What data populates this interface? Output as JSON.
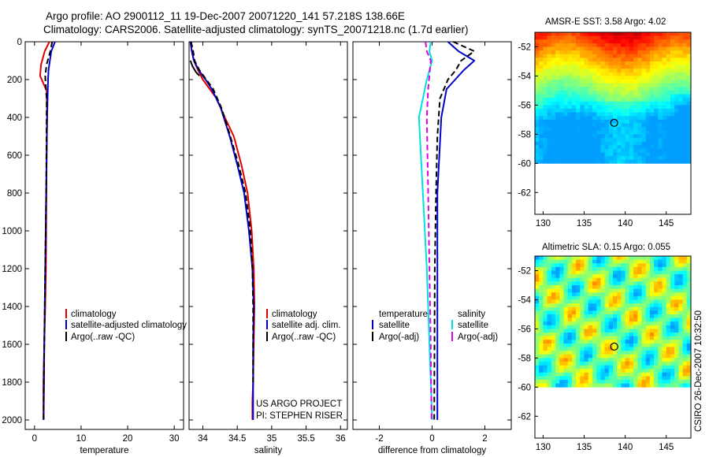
{
  "header": {
    "line1": "Argo profile: AO 2900112_11 19-Dec-2007 20071220_141 57.218S 138.66E",
    "line2": "Climatology: CARS2006. Satellite-adjusted climatology: synTS_20071218.nc (1.7d earlier)"
  },
  "credit": {
    "line1": "US ARGO PROJECT",
    "line2": "PI: STEPHEN RISER",
    "stamp": "CSIRO 26-Dec-2007 10:32:50"
  },
  "colors": {
    "climatology": "#e00000",
    "satellite": "#0000cc",
    "argo": "#000000",
    "sat_cyan": "#00e0e0",
    "argo_magenta": "#e000e0"
  },
  "chart_data": [
    {
      "type": "line",
      "title": "",
      "xlabel": "temperature",
      "ylabel": "",
      "xlim": [
        -2,
        32
      ],
      "ylim": [
        2050,
        0
      ],
      "xticks": [
        0,
        10,
        20,
        30
      ],
      "yticks": [
        0,
        200,
        400,
        600,
        800,
        1000,
        1200,
        1400,
        1600,
        1800,
        2000
      ],
      "legend": [
        "climatology",
        "satellite-adjusted climatology",
        "Argo(..raw -QC)"
      ],
      "series": [
        {
          "name": "climatology",
          "style": "solid",
          "color": "#e00000",
          "x": [
            3.2,
            2.2,
            1.4,
            1.2,
            2.6,
            2.7,
            2.6,
            2.55,
            2.5,
            2.45,
            2.3,
            2.2,
            2.1,
            2.0,
            1.9,
            1.9,
            1.9
          ],
          "y": [
            0,
            50,
            120,
            180,
            260,
            400,
            600,
            800,
            1000,
            1200,
            1400,
            1500,
            1600,
            1700,
            1800,
            1900,
            2000
          ]
        },
        {
          "name": "satellite-adjusted climatology",
          "style": "solid",
          "color": "#0000cc",
          "x": [
            4.4,
            3.6,
            3.3,
            3.0,
            2.9,
            2.85,
            2.7,
            2.6,
            2.5,
            2.4,
            2.3,
            2.2,
            2.1,
            2.05,
            2.0,
            1.95
          ],
          "y": [
            0,
            50,
            100,
            150,
            200,
            250,
            400,
            600,
            800,
            1000,
            1200,
            1400,
            1600,
            1800,
            1900,
            2000
          ]
        },
        {
          "name": "Argo(..raw -QC)",
          "style": "dash",
          "color": "#000000",
          "x": [
            3.8,
            3.4,
            2.6,
            2.3,
            2.4,
            2.6,
            2.6,
            2.55,
            2.5,
            2.4,
            2.3,
            2.2,
            2.1,
            2.0,
            1.95
          ],
          "y": [
            0,
            50,
            120,
            180,
            230,
            300,
            400,
            600,
            800,
            1000,
            1200,
            1400,
            1600,
            1800,
            2000
          ]
        }
      ]
    },
    {
      "type": "line",
      "title": "",
      "xlabel": "salinity",
      "ylabel": "",
      "xlim": [
        33.8,
        36.1
      ],
      "ylim": [
        2050,
        0
      ],
      "xticks": [
        34,
        34.5,
        35,
        35.5,
        36
      ],
      "xticklabels": [
        "34",
        "34.5",
        "35",
        "35.5",
        "36"
      ],
      "legend": [
        "climatology",
        "satellite adj. clim.",
        "Argo(..raw -QC)"
      ],
      "series": [
        {
          "name": "climatology",
          "style": "solid",
          "color": "#e00000",
          "x": [
            33.82,
            33.84,
            33.87,
            33.93,
            34.0,
            34.1,
            34.2,
            34.32,
            34.45,
            34.56,
            34.65,
            34.71,
            34.74,
            34.75,
            34.74,
            34.73,
            34.72,
            34.72
          ],
          "y": [
            0,
            50,
            100,
            150,
            200,
            250,
            300,
            400,
            500,
            650,
            800,
            1000,
            1200,
            1400,
            1600,
            1800,
            1900,
            2000
          ]
        },
        {
          "name": "satellite adj. clim.",
          "style": "solid",
          "color": "#0000cc",
          "x": [
            33.82,
            33.84,
            33.87,
            33.94,
            34.04,
            34.13,
            34.26,
            34.39,
            34.5,
            34.6,
            34.67,
            34.72,
            34.74,
            34.73,
            34.73,
            34.73
          ],
          "y": [
            0,
            50,
            100,
            150,
            200,
            250,
            350,
            500,
            650,
            800,
            1000,
            1200,
            1400,
            1600,
            1800,
            2000
          ]
        },
        {
          "name": "Argo(..raw -QC)",
          "style": "dash",
          "color": "#000000",
          "x": [
            33.83,
            33.86,
            33.88,
            33.95,
            34.05,
            34.15,
            34.27,
            34.4,
            34.52,
            34.62,
            34.69,
            34.72,
            34.73,
            34.73,
            34.73
          ],
          "y": [
            0,
            50,
            100,
            150,
            200,
            250,
            350,
            500,
            650,
            800,
            1000,
            1200,
            1400,
            1600,
            1800
          ]
        },
        {
          "name": "surface-hook-black",
          "style": "solid",
          "color": "#000000",
          "x": [
            33.82,
            33.83,
            33.85,
            33.9,
            33.95
          ],
          "y": [
            100,
            110,
            130,
            160,
            180
          ]
        }
      ]
    },
    {
      "type": "line",
      "title": "",
      "xlabel": "difference from climatology",
      "ylabel": "",
      "xlim": [
        -3.0,
        3.0
      ],
      "ylim": [
        2050,
        0
      ],
      "xticks": [
        -2,
        0,
        2
      ],
      "legend_groups": [
        {
          "title": "temperature",
          "items": [
            "satellite",
            "Argo(-adj)"
          ]
        },
        {
          "title": "salinity",
          "items": [
            "satellite",
            "Argo(-adj)"
          ]
        }
      ],
      "series": [
        {
          "name": "temperature satellite",
          "style": "solid",
          "color": "#0000cc",
          "x": [
            0.6,
            1.0,
            1.6,
            1.2,
            0.55,
            0.35,
            0.2,
            0.2,
            0.2,
            0.2
          ],
          "y": [
            0,
            50,
            100,
            150,
            250,
            400,
            800,
            1200,
            1600,
            2000
          ]
        },
        {
          "name": "temperature Argo(-adj)",
          "style": "dash",
          "color": "#000000",
          "x": [
            0.8,
            1.6,
            1.1,
            0.9,
            0.6,
            0.3,
            0.2,
            0.15,
            0.1,
            0.08
          ],
          "y": [
            0,
            50,
            100,
            150,
            200,
            300,
            500,
            800,
            1200,
            2000
          ]
        },
        {
          "name": "salinity satellite",
          "style": "solid",
          "color": "#00e0e0",
          "x": [
            -0.05,
            -0.1,
            0.0,
            -0.2,
            -0.5,
            -0.35,
            -0.2,
            -0.1,
            0.0
          ],
          "y": [
            0,
            50,
            100,
            200,
            400,
            800,
            1200,
            1600,
            2000
          ]
        },
        {
          "name": "salinity Argo(-adj)",
          "style": "dash",
          "color": "#e000e0",
          "x": [
            -0.25,
            -0.2,
            -0.05,
            -0.15,
            -0.2,
            -0.15,
            -0.1,
            -0.05,
            -0.02
          ],
          "y": [
            0,
            50,
            100,
            250,
            400,
            800,
            1200,
            1600,
            2000
          ]
        }
      ]
    },
    {
      "type": "heatmap",
      "title": "AMSR-E SST: 3.58 Argo: 4.02",
      "xlim": [
        129,
        148
      ],
      "ylim": [
        -63.5,
        -51
      ],
      "xticks": [
        130,
        135,
        140,
        145
      ],
      "yticks": [
        -52,
        -54,
        -56,
        -58,
        -60,
        -62
      ],
      "data_lat_range": [
        -60,
        -51
      ],
      "marker": {
        "lon": 138.66,
        "lat": -57.218
      }
    },
    {
      "type": "heatmap",
      "title": "Altimetric SLA: 0.15 Argo: 0.055",
      "xlim": [
        129,
        148
      ],
      "ylim": [
        -63.5,
        -51
      ],
      "xticks": [
        130,
        135,
        140,
        145
      ],
      "yticks": [
        -52,
        -54,
        -56,
        -58,
        -60,
        -62
      ],
      "data_lat_range": [
        -60,
        -51
      ],
      "marker": {
        "lon": 138.66,
        "lat": -57.218
      }
    }
  ]
}
